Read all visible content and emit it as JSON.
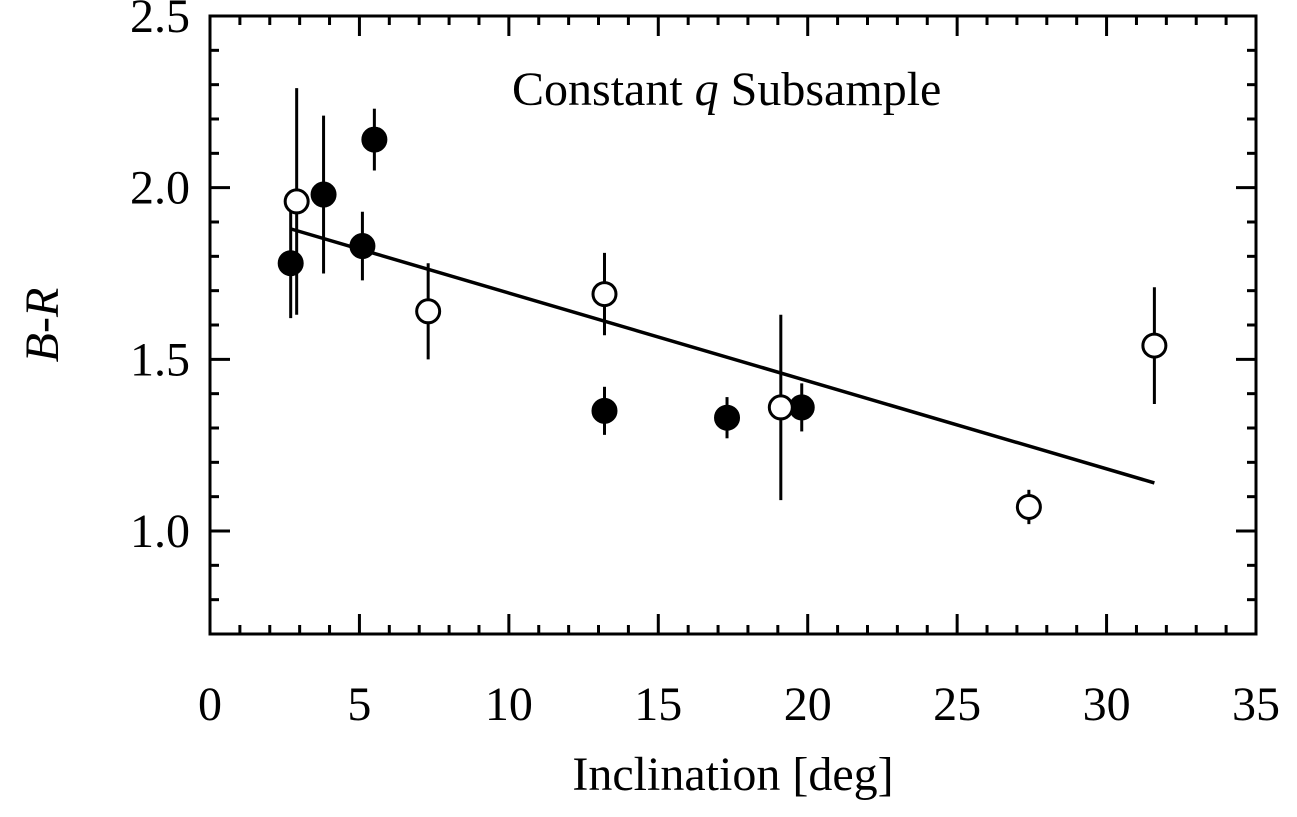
{
  "chart_data": {
    "type": "scatter",
    "title": "",
    "annotation": {
      "prefix": "Constant ",
      "italic": "q",
      "suffix": " Subsample"
    },
    "xlabel": "Inclination [deg]",
    "ylabel": {
      "italic_left": "B",
      "sep": "-",
      "italic_right": "R"
    },
    "xlim": [
      0,
      35
    ],
    "ylim": [
      0.7,
      2.5
    ],
    "xticks": [
      0,
      5,
      10,
      15,
      20,
      25,
      30,
      35
    ],
    "xtick_labels": [
      "0",
      "5",
      "10",
      "15",
      "20",
      "25",
      "30",
      "35"
    ],
    "yticks": [
      1.0,
      1.5,
      2.0,
      2.5
    ],
    "ytick_labels": [
      "1.0",
      "1.5",
      "2.0",
      "2.5"
    ],
    "x_minor_step": 1,
    "y_minor_step": 0.1,
    "series": [
      {
        "name": "filled",
        "marker": "filled-circle",
        "points": [
          {
            "x": 2.7,
            "y": 1.78,
            "err": 0.16
          },
          {
            "x": 3.8,
            "y": 1.98,
            "err": 0.23
          },
          {
            "x": 5.1,
            "y": 1.83,
            "err": 0.1
          },
          {
            "x": 5.5,
            "y": 2.14,
            "err": 0.09
          },
          {
            "x": 13.2,
            "y": 1.35,
            "err": 0.07
          },
          {
            "x": 17.3,
            "y": 1.33,
            "err": 0.06
          },
          {
            "x": 19.8,
            "y": 1.36,
            "err": 0.07
          }
        ]
      },
      {
        "name": "open",
        "marker": "open-circle",
        "points": [
          {
            "x": 2.9,
            "y": 1.96,
            "err": 0.33
          },
          {
            "x": 7.3,
            "y": 1.64,
            "err": 0.14
          },
          {
            "x": 13.2,
            "y": 1.69,
            "err": 0.12
          },
          {
            "x": 19.1,
            "y": 1.36,
            "err": 0.27
          },
          {
            "x": 27.4,
            "y": 1.07,
            "err": 0.05
          },
          {
            "x": 31.6,
            "y": 1.54,
            "err": 0.17
          }
        ]
      }
    ],
    "fit_line": {
      "x": [
        2.7,
        31.6
      ],
      "y": [
        1.88,
        1.14
      ]
    }
  }
}
